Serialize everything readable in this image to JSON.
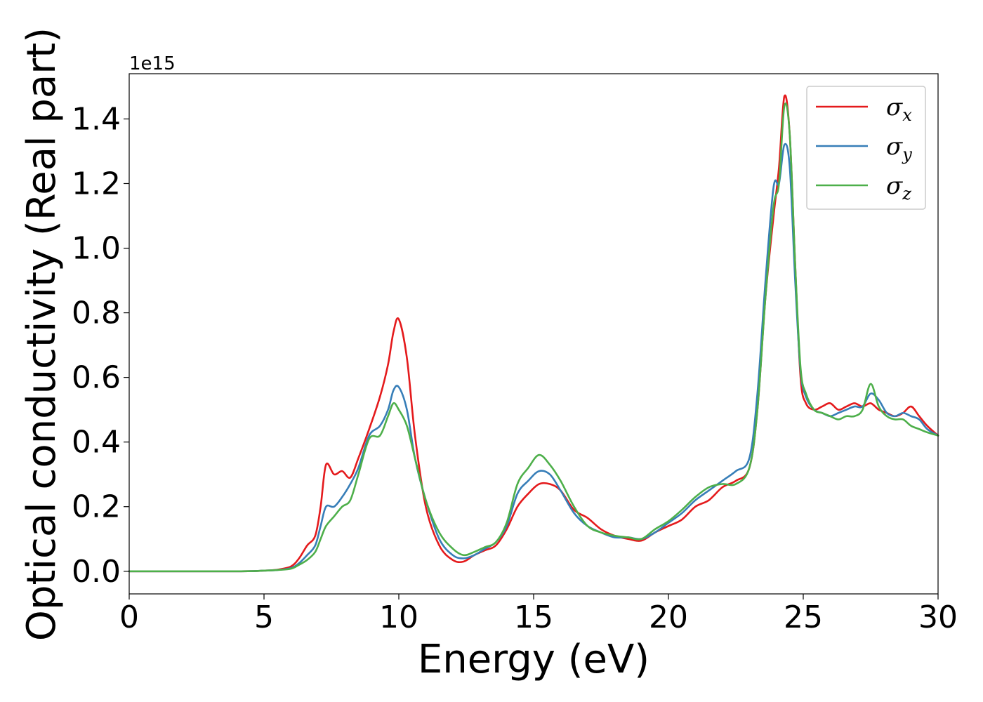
{
  "chart_data": {
    "type": "line",
    "title": "",
    "xlabel": "Energy (eV)",
    "ylabel": "Optical conductivity (Real part)",
    "y_offset_label": "1e15",
    "xlim": [
      0,
      30
    ],
    "ylim": [
      -0.07,
      1.54
    ],
    "x_ticks": [
      0,
      5,
      10,
      15,
      20,
      25,
      30
    ],
    "x_tick_labels": [
      "0",
      "5",
      "10",
      "15",
      "20",
      "25",
      "30"
    ],
    "y_ticks": [
      0.0,
      0.2,
      0.4,
      0.6,
      0.8,
      1.0,
      1.2,
      1.4
    ],
    "y_tick_labels": [
      "0.0",
      "0.2",
      "0.4",
      "0.6",
      "0.8",
      "1.0",
      "1.2",
      "1.4"
    ],
    "grid": false,
    "legend_position": "top-right",
    "series": [
      {
        "name": "σx",
        "legend_base": "σ",
        "legend_sub": "x",
        "color": "#e41a1c",
        "x": [
          0,
          4,
          5,
          5.5,
          6,
          6.3,
          6.6,
          6.9,
          7.1,
          7.3,
          7.6,
          7.9,
          8.2,
          8.5,
          8.9,
          9.3,
          9.6,
          9.8,
          10.0,
          10.3,
          10.6,
          11.0,
          11.5,
          12.0,
          12.4,
          12.8,
          13.2,
          13.6,
          14.0,
          14.4,
          14.8,
          15.2,
          15.6,
          16.0,
          16.5,
          17.0,
          17.5,
          18.0,
          18.5,
          19.0,
          19.5,
          20.0,
          20.5,
          21.0,
          21.5,
          22.0,
          22.5,
          23.0,
          23.3,
          23.6,
          23.9,
          24.1,
          24.3,
          24.5,
          24.7,
          24.9,
          25.1,
          25.4,
          25.7,
          26.0,
          26.3,
          26.6,
          26.9,
          27.2,
          27.5,
          27.8,
          28.1,
          28.4,
          28.7,
          29.0,
          29.3,
          29.6,
          30.0
        ],
        "values": [
          0.0,
          0.0,
          0.002,
          0.005,
          0.015,
          0.04,
          0.08,
          0.11,
          0.2,
          0.33,
          0.3,
          0.31,
          0.29,
          0.35,
          0.44,
          0.54,
          0.64,
          0.74,
          0.78,
          0.66,
          0.42,
          0.2,
          0.08,
          0.035,
          0.03,
          0.05,
          0.065,
          0.08,
          0.13,
          0.2,
          0.24,
          0.27,
          0.27,
          0.25,
          0.19,
          0.165,
          0.13,
          0.11,
          0.1,
          0.095,
          0.12,
          0.14,
          0.16,
          0.2,
          0.22,
          0.26,
          0.28,
          0.32,
          0.5,
          0.85,
          1.1,
          1.25,
          1.47,
          1.35,
          0.95,
          0.6,
          0.52,
          0.5,
          0.51,
          0.52,
          0.5,
          0.51,
          0.52,
          0.51,
          0.52,
          0.5,
          0.49,
          0.48,
          0.49,
          0.51,
          0.48,
          0.45,
          0.42
        ]
      },
      {
        "name": "σy",
        "legend_base": "σ",
        "legend_sub": "y",
        "color": "#377eb8",
        "x": [
          0,
          4,
          5,
          5.5,
          6,
          6.3,
          6.6,
          6.9,
          7.1,
          7.3,
          7.6,
          7.9,
          8.2,
          8.5,
          8.9,
          9.3,
          9.6,
          9.8,
          10.0,
          10.3,
          10.6,
          11.0,
          11.5,
          12.0,
          12.4,
          12.8,
          13.2,
          13.6,
          14.0,
          14.4,
          14.8,
          15.2,
          15.6,
          16.0,
          16.5,
          17.0,
          17.5,
          18.0,
          18.5,
          19.0,
          19.5,
          20.0,
          20.5,
          21.0,
          21.5,
          22.0,
          22.5,
          23.0,
          23.3,
          23.6,
          23.9,
          24.1,
          24.3,
          24.5,
          24.7,
          24.9,
          25.1,
          25.4,
          25.7,
          26.0,
          26.3,
          26.6,
          26.9,
          27.2,
          27.5,
          27.8,
          28.1,
          28.4,
          28.7,
          29.0,
          29.3,
          29.6,
          30.0
        ],
        "values": [
          0.0,
          0.0,
          0.002,
          0.004,
          0.01,
          0.025,
          0.05,
          0.08,
          0.14,
          0.2,
          0.2,
          0.23,
          0.27,
          0.32,
          0.42,
          0.45,
          0.5,
          0.56,
          0.57,
          0.5,
          0.35,
          0.22,
          0.1,
          0.05,
          0.04,
          0.05,
          0.07,
          0.09,
          0.14,
          0.24,
          0.28,
          0.31,
          0.3,
          0.25,
          0.18,
          0.14,
          0.12,
          0.105,
          0.105,
          0.1,
          0.12,
          0.15,
          0.18,
          0.22,
          0.25,
          0.28,
          0.31,
          0.35,
          0.55,
          0.9,
          1.19,
          1.2,
          1.32,
          1.25,
          0.9,
          0.62,
          0.54,
          0.5,
          0.49,
          0.48,
          0.49,
          0.5,
          0.51,
          0.51,
          0.55,
          0.53,
          0.49,
          0.48,
          0.49,
          0.48,
          0.47,
          0.44,
          0.42
        ]
      },
      {
        "name": "σz",
        "legend_base": "σ",
        "legend_sub": "z",
        "color": "#4daf4a",
        "x": [
          0,
          4,
          5,
          5.5,
          6,
          6.3,
          6.6,
          6.9,
          7.1,
          7.3,
          7.6,
          7.9,
          8.2,
          8.5,
          8.9,
          9.3,
          9.6,
          9.8,
          10.0,
          10.3,
          10.6,
          11.0,
          11.5,
          12.0,
          12.4,
          12.8,
          13.2,
          13.6,
          14.0,
          14.4,
          14.8,
          15.2,
          15.6,
          16.0,
          16.5,
          17.0,
          17.5,
          18.0,
          18.5,
          19.0,
          19.5,
          20.0,
          20.5,
          21.0,
          21.5,
          22.0,
          22.5,
          23.0,
          23.3,
          23.6,
          23.9,
          24.1,
          24.3,
          24.5,
          24.7,
          24.9,
          25.1,
          25.4,
          25.7,
          26.0,
          26.3,
          26.6,
          26.9,
          27.2,
          27.5,
          27.8,
          28.1,
          28.4,
          28.7,
          29.0,
          29.3,
          29.6,
          30.0
        ],
        "values": [
          0.0,
          0.0,
          0.002,
          0.004,
          0.008,
          0.02,
          0.035,
          0.06,
          0.1,
          0.14,
          0.17,
          0.2,
          0.22,
          0.3,
          0.41,
          0.42,
          0.48,
          0.52,
          0.5,
          0.45,
          0.35,
          0.22,
          0.12,
          0.07,
          0.05,
          0.06,
          0.075,
          0.09,
          0.15,
          0.27,
          0.32,
          0.36,
          0.33,
          0.28,
          0.2,
          0.14,
          0.12,
          0.11,
          0.105,
          0.1,
          0.13,
          0.155,
          0.19,
          0.23,
          0.26,
          0.27,
          0.27,
          0.32,
          0.5,
          0.85,
          1.13,
          1.2,
          1.44,
          1.35,
          0.95,
          0.63,
          0.55,
          0.5,
          0.49,
          0.48,
          0.47,
          0.48,
          0.48,
          0.5,
          0.58,
          0.51,
          0.48,
          0.47,
          0.47,
          0.45,
          0.44,
          0.43,
          0.42
        ]
      }
    ]
  }
}
